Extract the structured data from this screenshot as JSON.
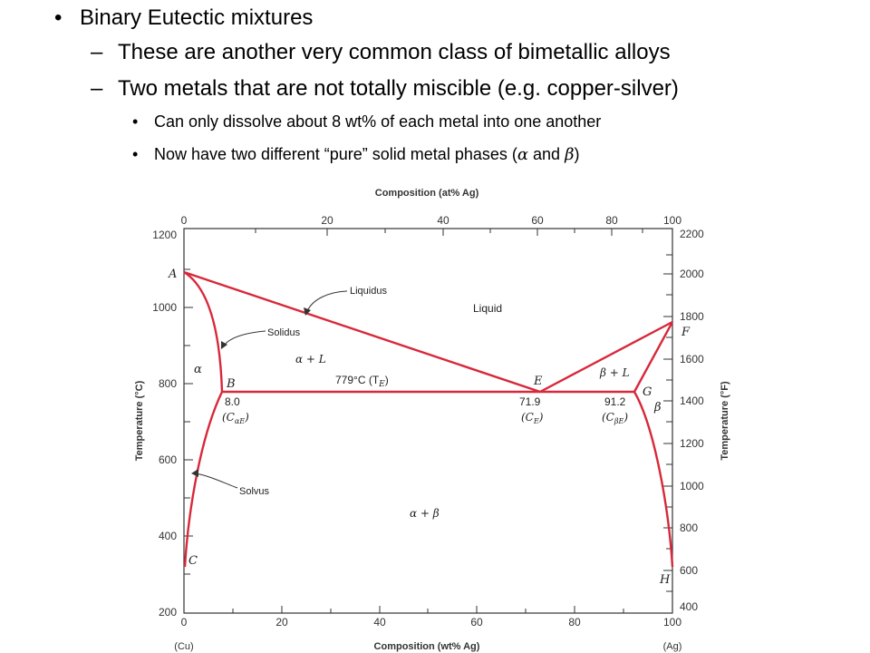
{
  "slide": {
    "bullet1": "Binary Eutectic mixtures",
    "sub1": "These are another very common class of bimetallic alloys",
    "sub2": "Two metals that are not totally miscible (e.g. copper-silver)",
    "subsub1": "Can only dissolve about 8 wt% of each metal into one another",
    "subsub2_prefix": "Now have two different “pure” solid metal phases (",
    "subsub2_alpha": "α",
    "subsub2_and": " and ",
    "subsub2_beta": "β",
    "subsub2_suffix": ")"
  },
  "diagram": {
    "top_axis_title": "Composition (at% Ag)",
    "bottom_axis_title": "Composition (wt% Ag)",
    "left_axis_title": "Temperature (°C)",
    "right_axis_title": "Temperature (°F)",
    "top_ticks": [
      "0",
      "20",
      "40",
      "60",
      "80",
      "100"
    ],
    "bottom_ticks": [
      "0",
      "20",
      "40",
      "60",
      "80",
      "100"
    ],
    "left_ticks": [
      "1200",
      "1000",
      "800",
      "600",
      "400",
      "200"
    ],
    "right_ticks": [
      "2200",
      "2000",
      "1800",
      "1600",
      "1400",
      "1200",
      "1000",
      "800",
      "600",
      "400"
    ],
    "cu_label": "(Cu)",
    "ag_label": "(Ag)",
    "labels": {
      "A": "A",
      "B": "B",
      "C": "C",
      "E": "E",
      "F": "F",
      "G": "G",
      "H": "H",
      "liquidus": "Liquidus",
      "solidus": "Solidus",
      "solvus": "Solvus",
      "liquid": "Liquid",
      "alpha": "α",
      "beta": "β",
      "alpha_l": "α + L",
      "beta_l": "β + L",
      "alpha_beta": "α + β",
      "eutectic_temp": "779°C (T",
      "eutectic_temp_sub": "E",
      "eutectic_temp_close": ")",
      "cae_value": "8.0",
      "cae_label": "(C",
      "cae_sub": "αE",
      "ce_value": "71.9",
      "ce_label": "(C",
      "ce_sub": "E",
      "cbe_value": "91.2",
      "cbe_label": "(C",
      "cbe_sub": "βE",
      "close_paren": ")"
    },
    "colors": {
      "phase_line": "#d8283a",
      "frame": "#333333"
    }
  }
}
